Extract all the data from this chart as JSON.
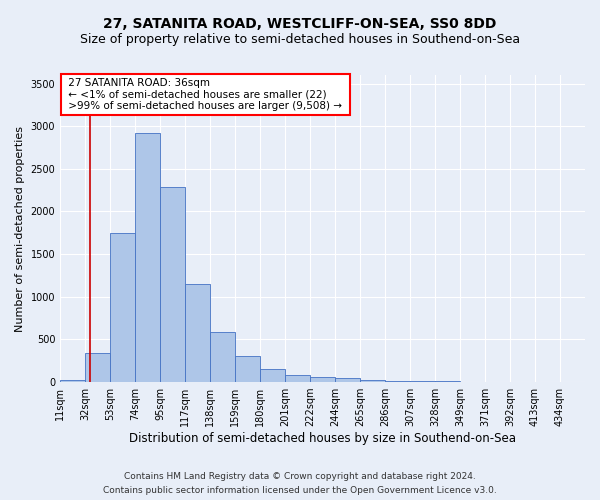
{
  "title": "27, SATANITA ROAD, WESTCLIFF-ON-SEA, SS0 8DD",
  "subtitle": "Size of property relative to semi-detached houses in Southend-on-Sea",
  "xlabel": "Distribution of semi-detached houses by size in Southend-on-Sea",
  "ylabel": "Number of semi-detached properties",
  "footer1": "Contains HM Land Registry data © Crown copyright and database right 2024.",
  "footer2": "Contains public sector information licensed under the Open Government Licence v3.0.",
  "annotation_title": "27 SATANITA ROAD: 36sqm",
  "annotation_line1": "← <1% of semi-detached houses are smaller (22)",
  "annotation_line2": ">99% of semi-detached houses are larger (9,508) →",
  "bar_labels": [
    "11sqm",
    "32sqm",
    "53sqm",
    "74sqm",
    "95sqm",
    "117sqm",
    "138sqm",
    "159sqm",
    "180sqm",
    "201sqm",
    "222sqm",
    "244sqm",
    "265sqm",
    "286sqm",
    "307sqm",
    "328sqm",
    "349sqm",
    "371sqm",
    "392sqm",
    "413sqm",
    "434sqm"
  ],
  "bar_values": [
    22,
    340,
    1750,
    2920,
    2290,
    1150,
    590,
    305,
    150,
    80,
    55,
    45,
    25,
    15,
    10,
    8,
    5,
    4,
    3,
    2,
    1
  ],
  "bar_color": "#aec6e8",
  "bar_edge_color": "#4472c4",
  "property_line_x": 36,
  "property_line_color": "#cc0000",
  "ylim": [
    0,
    3600
  ],
  "xlim_min": 11,
  "bin_width": 21,
  "background_color": "#e8eef8",
  "grid_color": "#ffffff",
  "title_fontsize": 10,
  "subtitle_fontsize": 9,
  "xlabel_fontsize": 8.5,
  "ylabel_fontsize": 8,
  "tick_fontsize": 7,
  "footer_fontsize": 6.5,
  "annotation_fontsize": 7.5
}
